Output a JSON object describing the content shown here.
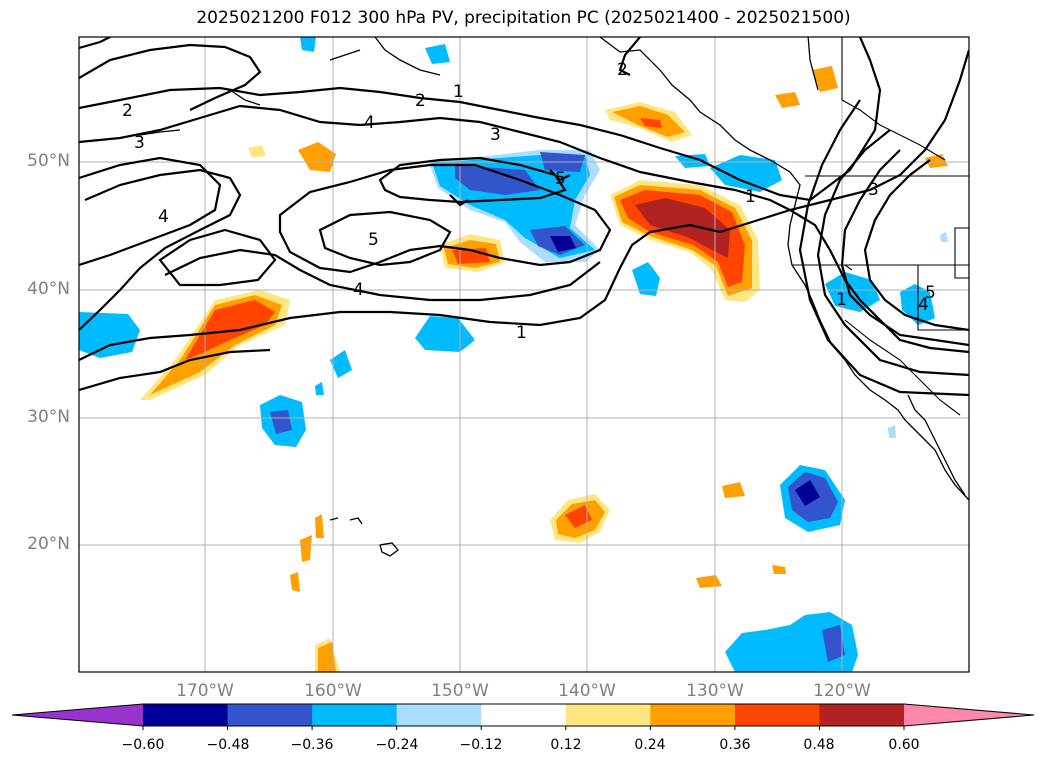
{
  "title": "2025021200 F012 300 hPa PV, precipitation PC (2025021400 - 2025021500)",
  "lat_labels": [
    "50°N",
    "40°N",
    "30°N",
    "20°N"
  ],
  "lon_labels": [
    "170°W",
    "160°W",
    "150°W",
    "140°W",
    "130°W",
    "120°W"
  ],
  "colorbar": {
    "ticks": [
      "−0.60",
      "−0.48",
      "−0.36",
      "−0.24",
      "−0.12",
      "0.12",
      "0.24",
      "0.36",
      "0.48",
      "0.60"
    ],
    "colors": [
      "#9933cc",
      "#000099",
      "#3355cc",
      "#00bbff",
      "#aaddff",
      "#ffffff",
      "#ffe680",
      "#ffa000",
      "#ff4400",
      "#b22222",
      "#ff88aa"
    ]
  },
  "contour_labels": [
    "1",
    "2",
    "3",
    "4",
    "5",
    "2",
    "3",
    "4",
    "5",
    "4",
    "1",
    "1",
    "2",
    "3",
    "4",
    "5",
    "1"
  ]
}
